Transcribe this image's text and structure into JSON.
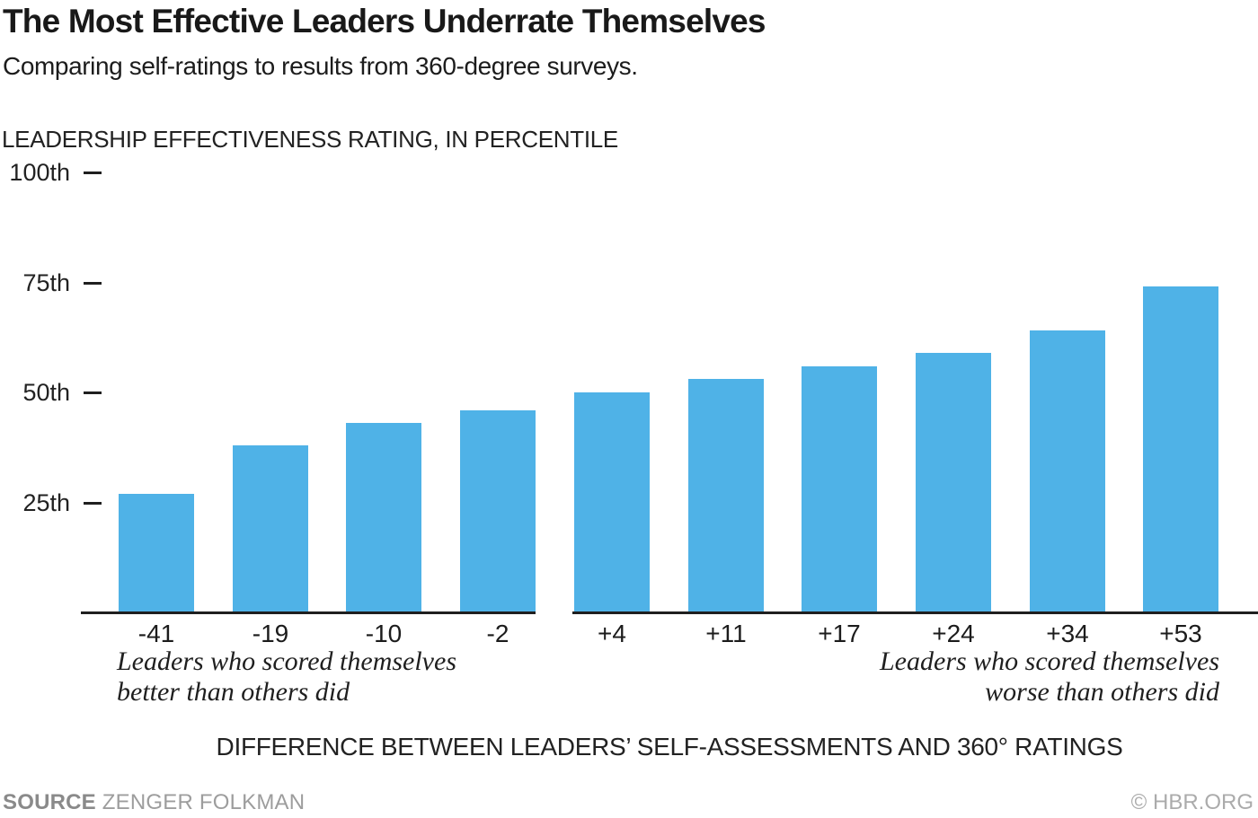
{
  "header": {
    "title": "The Most Effective Leaders Underrate Themselves",
    "subtitle": "Comparing self-ratings to results from 360-degree surveys."
  },
  "chart_data": {
    "type": "bar",
    "title": "The Most Effective Leaders Underrate Themselves",
    "subtitle": "Comparing self-ratings to results from 360-degree surveys.",
    "y_axis_title": "LEADERSHIP EFFECTIVENESS RATING, IN PERCENTILE",
    "x_axis_title": "DIFFERENCE BETWEEN LEADERS’ SELF-ASSESSMENTS AND 360° RATINGS",
    "categories": [
      "-41",
      "-19",
      "-10",
      "-2",
      "+4",
      "+11",
      "+17",
      "+24",
      "+34",
      "+53"
    ],
    "values": [
      27,
      38,
      43,
      46,
      50,
      53,
      56,
      59,
      64,
      74
    ],
    "ylim": [
      0,
      100
    ],
    "y_ticks": [
      {
        "label": "100th",
        "value": 100
      },
      {
        "label": "75th",
        "value": 75
      },
      {
        "label": "50th",
        "value": 50
      },
      {
        "label": "25th",
        "value": 25
      }
    ],
    "bar_color": "#4FB2E7",
    "grid": false,
    "legend": "none",
    "axis_gap_after_category_index": 3,
    "annotations": {
      "left": [
        "Leaders who scored themselves",
        "better than others did"
      ],
      "right": [
        "Leaders who scored themselves",
        "worse than others did"
      ]
    }
  },
  "footer": {
    "source_label": "SOURCE",
    "source_value": "ZENGER FOLKMAN",
    "credit": "© HBR.ORG"
  }
}
